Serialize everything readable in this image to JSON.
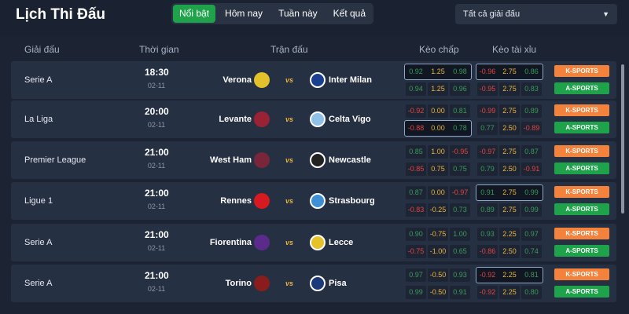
{
  "header": {
    "title": "Lịch Thi Đấu",
    "tabs": [
      "Nổi bật",
      "Hôm nay",
      "Tuần này",
      "Kết quả"
    ],
    "active_tab": 0,
    "league_select": "Tất cả giải đấu"
  },
  "columns": {
    "league": "Giải đấu",
    "time": "Thời gian",
    "match": "Trận đấu",
    "handicap": "Kèo chấp",
    "over_under": "Kèo tài xỉu"
  },
  "vs_label": "vs",
  "buttons": {
    "k": "K-SPORTS",
    "a": "A-SPORTS"
  },
  "colors": {
    "positive": "#3a9a58",
    "negative": "#e0443e",
    "line": "#e9b33d",
    "k_sports": "#f2823c",
    "a_sports": "#1ea34a"
  },
  "matches": [
    {
      "league": "Serie A",
      "time": "18:30",
      "date": "02-11",
      "home": "Verona",
      "away": "Inter Milan",
      "home_color": "#e2c12a",
      "away_color": "#1b3f8f",
      "handicap": [
        [
          "0.92",
          "1.25",
          "0.98"
        ],
        [
          "0.94",
          "1.25",
          "0.96"
        ]
      ],
      "ou": [
        [
          "-0.96",
          "2.75",
          "0.86"
        ],
        [
          "-0.95",
          "2.75",
          "0.83"
        ]
      ],
      "hl_h": 0,
      "hl_ou": 0
    },
    {
      "league": "La Liga",
      "time": "20:00",
      "date": "02-11",
      "home": "Levante",
      "away": "Celta Vigo",
      "home_color": "#9a2235",
      "away_color": "#8fc1e6",
      "handicap": [
        [
          "-0.92",
          "0.00",
          "0.81"
        ],
        [
          "-0.88",
          "0.00",
          "0.78"
        ]
      ],
      "ou": [
        [
          "-0.99",
          "2.75",
          "0.89"
        ],
        [
          "0.77",
          "2.50",
          "-0.89"
        ]
      ],
      "hl_h": 1,
      "hl_ou": -1
    },
    {
      "league": "Premier League",
      "time": "21:00",
      "date": "02-11",
      "home": "West Ham",
      "away": "Newcastle",
      "home_color": "#7a263a",
      "away_color": "#222222",
      "handicap": [
        [
          "0.85",
          "1.00",
          "-0.95"
        ],
        [
          "-0.85",
          "0.75",
          "0.75"
        ]
      ],
      "ou": [
        [
          "-0.97",
          "2.75",
          "0.87"
        ],
        [
          "0.79",
          "2.50",
          "-0.91"
        ]
      ],
      "hl_h": -1,
      "hl_ou": -1
    },
    {
      "league": "Ligue 1",
      "time": "21:00",
      "date": "02-11",
      "home": "Rennes",
      "away": "Strasbourg",
      "home_color": "#d71920",
      "away_color": "#3d8fd6",
      "handicap": [
        [
          "0.87",
          "0.00",
          "-0.97"
        ],
        [
          "-0.83",
          "-0.25",
          "0.73"
        ]
      ],
      "ou": [
        [
          "0.91",
          "2.75",
          "0.99"
        ],
        [
          "0.89",
          "2.75",
          "0.99"
        ]
      ],
      "hl_h": -1,
      "hl_ou": 0
    },
    {
      "league": "Serie A",
      "time": "21:00",
      "date": "02-11",
      "home": "Fiorentina",
      "away": "Lecce",
      "home_color": "#5b2b8c",
      "away_color": "#e6c22a",
      "handicap": [
        [
          "0.90",
          "-0.75",
          "1.00"
        ],
        [
          "-0.75",
          "-1.00",
          "0.65"
        ]
      ],
      "ou": [
        [
          "0.93",
          "2.25",
          "0.97"
        ],
        [
          "-0.86",
          "2.50",
          "0.74"
        ]
      ],
      "hl_h": -1,
      "hl_ou": -1
    },
    {
      "league": "Serie A",
      "time": "21:00",
      "date": "02-11",
      "home": "Torino",
      "away": "Pisa",
      "home_color": "#8a1c1c",
      "away_color": "#1c3a7a",
      "handicap": [
        [
          "0.97",
          "-0.50",
          "0.93"
        ],
        [
          "0.99",
          "-0.50",
          "0.91"
        ]
      ],
      "ou": [
        [
          "-0.92",
          "2.25",
          "0.81"
        ],
        [
          "-0.92",
          "2.25",
          "0.80"
        ]
      ],
      "hl_h": -1,
      "hl_ou": 0
    }
  ]
}
